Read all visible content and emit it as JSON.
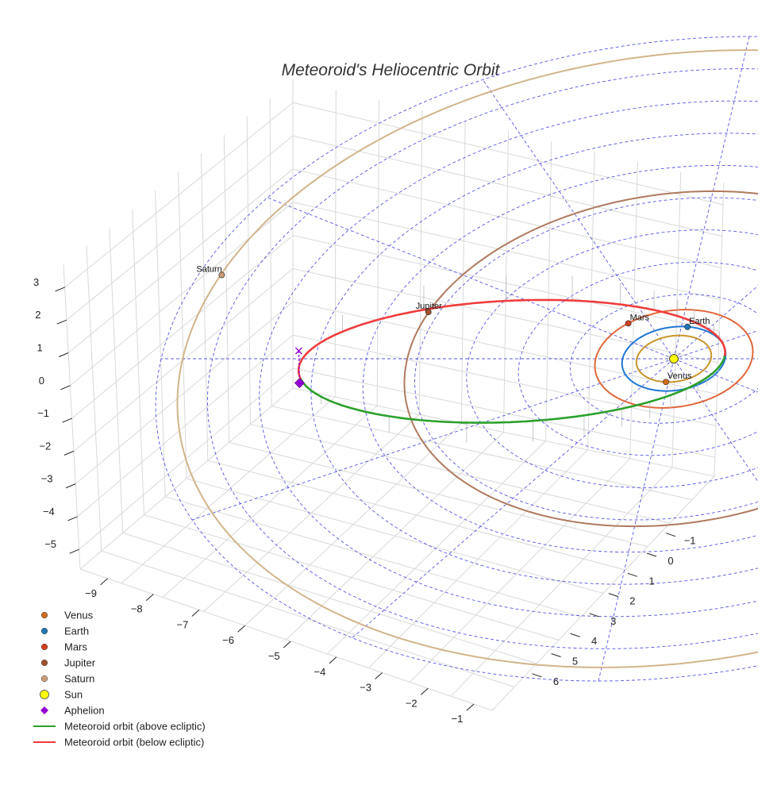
{
  "chart_data": {
    "type": "line",
    "projection": "3d",
    "title": "Meteoroid's Heliocentric Orbit",
    "xlabel": "",
    "ylabel": "",
    "zlabel": "",
    "xlim": [
      -9.6,
      -0.6
    ],
    "ylim": [
      -1.7,
      6.6
    ],
    "zlim": [
      -5.6,
      3.7
    ],
    "x_ticks": [
      -9,
      -8,
      -7,
      -6,
      -5,
      -4,
      -3,
      -2,
      -1
    ],
    "y_ticks": [
      -1,
      0,
      1,
      2,
      3,
      4,
      5,
      6
    ],
    "z_ticks": [
      -5,
      -4,
      -3,
      -2,
      -1,
      0,
      1,
      2,
      3
    ],
    "tick_labels": {
      "x": [
        "−9",
        "−8",
        "−7",
        "−6",
        "−5",
        "−4",
        "−3",
        "−2",
        "−1"
      ],
      "y": [
        "−1",
        "0",
        "1",
        "2",
        "3",
        "4",
        "5",
        "6"
      ],
      "z": [
        "−5",
        "−4",
        "−3",
        "−2",
        "−1",
        "0",
        "1",
        "2",
        "3"
      ]
    },
    "grid": true,
    "ecliptic_grid": {
      "rings_au": [
        1,
        2,
        3,
        4,
        5,
        6,
        7,
        8,
        9,
        10
      ],
      "spokes": 12,
      "color": "#3b3bdc"
    },
    "sun": {
      "name": "Sun",
      "x": 0,
      "y": 0,
      "z": 0,
      "color": "#ffff00"
    },
    "planets": [
      {
        "name": "Venus",
        "a": 0.723,
        "color": "#c8952a",
        "marker_color": "#d2691e",
        "pos": [
          -0.05,
          0.72,
          0
        ]
      },
      {
        "name": "Earth",
        "a": 1.0,
        "color": "#1f77d4",
        "marker_color": "#1f77b4",
        "pos": [
          0.12,
          -0.99,
          0
        ]
      },
      {
        "name": "Mars",
        "a": 1.524,
        "color": "#e0673b",
        "marker_color": "#d2401e",
        "pos": [
          -1.05,
          -1.1,
          0
        ]
      },
      {
        "name": "Jupiter",
        "a": 5.2,
        "color": "#b07a5f",
        "marker_color": "#a0522d",
        "pos": [
          -5.0,
          -1.45,
          0
        ]
      },
      {
        "name": "Saturn",
        "a": 9.58,
        "color": "#d2b48c",
        "marker_color": "#cd9c77",
        "pos": [
          -9.2,
          -2.6,
          0
        ]
      }
    ],
    "meteoroid_orbit": {
      "perihelion_au": 0.98,
      "aphelion_au": 7.3,
      "aphelion_longitude_deg": 180,
      "inclination_deg": 12,
      "node_longitude_deg": 5,
      "segments": [
        {
          "name": "Meteoroid orbit (above ecliptic)",
          "color": "#2ca02c"
        },
        {
          "name": "Meteoroid orbit (below ecliptic)",
          "color": "#f03c3c"
        }
      ]
    },
    "aphelion": {
      "name": "Aphelion",
      "x": -7.3,
      "y": 0.0,
      "z": -0.7,
      "color": "#9400d3"
    },
    "aphelion_projection": {
      "x": -7.3,
      "y": 0.0,
      "z": 0.0,
      "color": "#9400d3"
    },
    "legend": {
      "position": "lower-left",
      "entries": [
        {
          "label": "Venus",
          "kind": "dot",
          "color": "#d2691e"
        },
        {
          "label": "Earth",
          "kind": "dot",
          "color": "#1f77b4"
        },
        {
          "label": "Mars",
          "kind": "dot",
          "color": "#d2401e"
        },
        {
          "label": "Jupiter",
          "kind": "dot",
          "color": "#a0522d"
        },
        {
          "label": "Saturn",
          "kind": "dot",
          "color": "#cd9c77"
        },
        {
          "label": "Sun",
          "kind": "circle",
          "color": "#ffff00"
        },
        {
          "label": "Aphelion",
          "kind": "diamond",
          "color": "#9400d3"
        },
        {
          "label": "Meteoroid orbit (above ecliptic)",
          "kind": "line",
          "color": "#2ca02c"
        },
        {
          "label": "Meteoroid orbit (below ecliptic)",
          "kind": "line",
          "color": "#f03c3c"
        }
      ]
    }
  }
}
